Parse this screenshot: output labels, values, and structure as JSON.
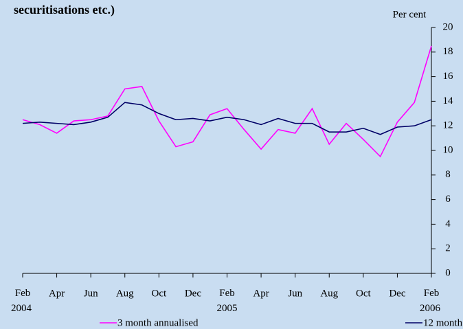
{
  "chart_data": {
    "type": "line",
    "title": "securitisations etc.)",
    "y_axis_label": "Per cent",
    "categories": [
      "Feb 2004",
      null,
      "Apr",
      null,
      "Jun",
      null,
      "Aug",
      null,
      "Oct",
      null,
      "Dec",
      null,
      "Feb 2005",
      null,
      "Apr",
      null,
      "Jun",
      null,
      "Aug",
      null,
      "Oct",
      null,
      "Dec",
      null,
      "Feb 2006"
    ],
    "series": [
      {
        "name": "3 month annualised",
        "color": "#ff00ff",
        "values": [
          12.5,
          12.1,
          11.4,
          12.4,
          12.5,
          12.8,
          15.0,
          15.2,
          12.4,
          10.3,
          10.7,
          12.9,
          13.4,
          11.7,
          10.1,
          11.7,
          11.4,
          13.4,
          10.5,
          12.2,
          10.9,
          9.5,
          12.3,
          13.9,
          18.5
        ]
      },
      {
        "name": "12 month",
        "color": "#000066",
        "values": [
          12.2,
          12.3,
          12.2,
          12.1,
          12.3,
          12.7,
          13.9,
          13.7,
          13.0,
          12.5,
          12.6,
          12.4,
          12.7,
          12.5,
          12.1,
          12.6,
          12.2,
          12.2,
          11.5,
          11.5,
          11.8,
          11.3,
          11.9,
          12.0,
          12.5
        ]
      }
    ],
    "ylim": [
      0,
      20
    ],
    "yticks": [
      0,
      2,
      4,
      6,
      8,
      10,
      12,
      14,
      16,
      18,
      20
    ],
    "grid": false,
    "legend": "bottom"
  }
}
